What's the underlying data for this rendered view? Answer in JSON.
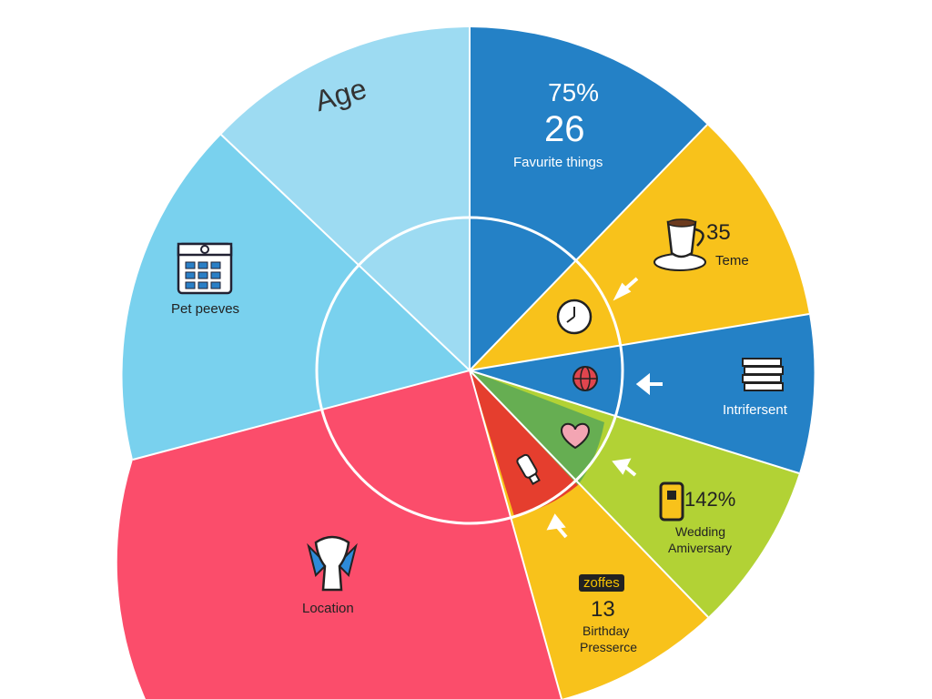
{
  "segments": [
    {
      "id": "age",
      "color": "#9ddbf2",
      "label": "Age"
    },
    {
      "id": "favorite-things",
      "color": "#2481c6",
      "percent": "75%",
      "value": "26",
      "label": "Favurite things"
    },
    {
      "id": "teme",
      "color": "#f8c21b",
      "value": "35",
      "label": "Teme"
    },
    {
      "id": "intrifersent",
      "color": "#2481c6",
      "label": "Intrifersent"
    },
    {
      "id": "wedding",
      "color": "#b2d235",
      "percent": "142%",
      "label_line1": "Wedding",
      "label_line2": "Amiversary"
    },
    {
      "id": "birthday",
      "color": "#f8c21b",
      "badge": "zoffes",
      "value": "13",
      "label_line1": "Birthday",
      "label_line2": "Presserce"
    },
    {
      "id": "location",
      "color": "#fb4d6b",
      "label": "Location"
    },
    {
      "id": "pet-peeves",
      "color": "#79d1ee",
      "label": "Pet peeves"
    }
  ],
  "inner_colors": {
    "red": "#e53e2e",
    "green": "#66ae52"
  },
  "icons": [
    "calendar-icon",
    "coffee-cup-icon",
    "clock-icon",
    "globe-icon",
    "heart-icon",
    "books-icon",
    "phone-icon",
    "bottle-icon",
    "trophy-icon",
    "arrow-icon"
  ]
}
